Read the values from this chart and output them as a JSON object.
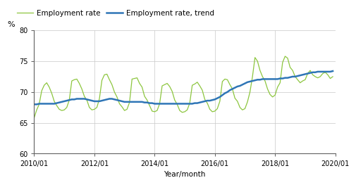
{
  "xlabel": "Year/month",
  "ylabel": "%",
  "ylim": [
    60,
    80
  ],
  "yticks": [
    60,
    65,
    70,
    75,
    80
  ],
  "xtick_labels": [
    "2010/01",
    "2012/01",
    "2014/01",
    "2016/01",
    "2018/01",
    "2020/01"
  ],
  "line_color_employment": "#8dc63f",
  "line_color_trend": "#2e75b6",
  "legend_employment": "Employment rate",
  "legend_trend": "Employment rate, trend",
  "employment_rate": [
    65.8,
    67.1,
    68.0,
    70.2,
    71.1,
    71.5,
    70.8,
    69.8,
    68.5,
    67.8,
    67.2,
    67.0,
    67.1,
    67.5,
    68.7,
    71.8,
    72.0,
    72.1,
    71.4,
    70.5,
    69.3,
    68.7,
    67.5,
    67.1,
    67.2,
    67.5,
    68.9,
    71.9,
    72.8,
    72.9,
    72.0,
    71.2,
    70.0,
    69.2,
    68.1,
    67.6,
    67.0,
    67.2,
    68.3,
    72.1,
    72.2,
    72.3,
    71.4,
    70.8,
    69.3,
    68.7,
    67.8,
    66.9,
    66.8,
    67.0,
    68.1,
    71.0,
    71.2,
    71.4,
    70.9,
    70.1,
    68.7,
    68.0,
    67.0,
    66.7,
    66.8,
    67.1,
    68.2,
    71.1,
    71.3,
    71.6,
    71.0,
    70.3,
    68.8,
    68.2,
    67.2,
    66.8,
    66.9,
    67.3,
    68.5,
    71.7,
    72.1,
    72.0,
    71.2,
    70.5,
    69.0,
    68.5,
    67.5,
    67.1,
    67.3,
    68.4,
    70.0,
    72.5,
    75.6,
    75.0,
    73.5,
    72.5,
    71.8,
    70.5,
    69.6,
    69.2,
    69.5,
    70.8,
    71.5,
    74.8,
    75.8,
    75.5,
    74.0,
    73.5,
    72.5,
    72.0,
    71.5,
    71.8,
    72.0,
    73.0,
    73.5,
    72.8,
    72.5,
    72.3,
    72.5,
    73.0,
    73.2,
    72.8,
    72.2,
    72.5
  ],
  "trend_rate": [
    68.0,
    68.0,
    68.1,
    68.1,
    68.1,
    68.1,
    68.1,
    68.1,
    68.1,
    68.2,
    68.3,
    68.4,
    68.5,
    68.6,
    68.7,
    68.8,
    68.8,
    68.9,
    68.9,
    68.9,
    68.9,
    68.8,
    68.7,
    68.6,
    68.5,
    68.5,
    68.5,
    68.6,
    68.7,
    68.8,
    68.9,
    68.9,
    68.8,
    68.7,
    68.6,
    68.5,
    68.4,
    68.4,
    68.4,
    68.4,
    68.4,
    68.4,
    68.4,
    68.4,
    68.3,
    68.3,
    68.2,
    68.2,
    68.1,
    68.1,
    68.1,
    68.1,
    68.1,
    68.1,
    68.1,
    68.1,
    68.1,
    68.1,
    68.1,
    68.1,
    68.1,
    68.1,
    68.1,
    68.1,
    68.2,
    68.2,
    68.3,
    68.4,
    68.5,
    68.6,
    68.6,
    68.7,
    68.8,
    69.0,
    69.2,
    69.5,
    69.8,
    70.0,
    70.3,
    70.5,
    70.7,
    70.9,
    71.0,
    71.2,
    71.4,
    71.6,
    71.7,
    71.8,
    71.9,
    72.0,
    72.0,
    72.1,
    72.1,
    72.1,
    72.1,
    72.1,
    72.1,
    72.1,
    72.2,
    72.2,
    72.3,
    72.3,
    72.4,
    72.5,
    72.5,
    72.6,
    72.7,
    72.8,
    72.9,
    73.0,
    73.1,
    73.2,
    73.2,
    73.3,
    73.3,
    73.3,
    73.3,
    73.3,
    73.3,
    73.4
  ]
}
